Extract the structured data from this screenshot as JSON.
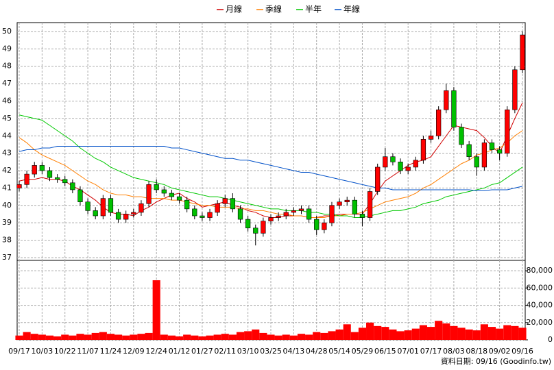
{
  "chart_data": {
    "type": "candlestick",
    "legend": [
      {
        "name": "月線",
        "color": "#d00000"
      },
      {
        "name": "季線",
        "color": "#ff7f00"
      },
      {
        "name": "半年",
        "color": "#00c800"
      },
      {
        "name": "年線",
        "color": "#0050c8"
      }
    ],
    "up_color": "#ff0000",
    "down_color": "#00c000",
    "categories": [
      "09/17",
      null,
      null,
      "10/03",
      null,
      null,
      "10/22",
      null,
      null,
      "11/07",
      null,
      null,
      "11/24",
      null,
      null,
      "12/09",
      null,
      null,
      "12/24",
      null,
      null,
      "01/12",
      null,
      null,
      "01/27",
      null,
      null,
      "02/11",
      null,
      null,
      "03/10",
      null,
      null,
      "03/25",
      null,
      null,
      "04/13",
      null,
      null,
      "04/28",
      null,
      null,
      "05/14",
      null,
      null,
      "05/29",
      null,
      null,
      "06/15",
      null,
      null,
      "07/01",
      null,
      null,
      "07/17",
      null,
      null,
      "08/03",
      null,
      null,
      "08/18",
      null,
      null,
      "09/02",
      null,
      null,
      "09/16"
    ],
    "open": [
      41.0,
      41.2,
      41.8,
      42.3,
      42.0,
      41.6,
      41.5,
      41.3,
      40.9,
      40.2,
      39.7,
      39.4,
      40.4,
      39.6,
      39.2,
      39.5,
      39.6,
      40.1,
      41.2,
      40.9,
      40.7,
      40.5,
      40.3,
      39.8,
      39.4,
      39.3,
      39.6,
      40.1,
      40.4,
      39.8,
      39.2,
      38.7,
      38.4,
      39.1,
      39.3,
      39.4,
      39.6,
      39.7,
      39.8,
      39.2,
      38.6,
      39.0,
      40.0,
      40.2,
      40.3,
      39.5,
      39.3,
      40.8,
      42.2,
      42.8,
      42.5,
      42.0,
      42.2,
      42.6,
      43.8,
      44.0,
      45.5,
      46.6,
      44.5,
      43.5,
      42.8,
      42.2,
      43.6,
      43.2,
      43.0,
      45.5,
      47.8
    ],
    "high": [
      41.4,
      42.0,
      42.5,
      42.5,
      42.2,
      41.8,
      41.7,
      41.5,
      41.1,
      40.4,
      39.9,
      40.6,
      40.6,
      39.8,
      39.7,
      39.8,
      40.3,
      41.4,
      41.5,
      41.1,
      40.9,
      40.7,
      40.5,
      40.0,
      39.6,
      39.8,
      40.3,
      40.6,
      40.7,
      40.0,
      39.4,
      38.9,
      39.3,
      39.5,
      39.6,
      39.8,
      39.9,
      40.0,
      40.0,
      39.4,
      39.2,
      40.2,
      40.4,
      40.5,
      40.5,
      39.7,
      41.0,
      42.4,
      43.3,
      43.0,
      42.7,
      42.4,
      42.8,
      44.0,
      44.3,
      45.7,
      47.0,
      46.8,
      44.7,
      43.7,
      43.0,
      43.8,
      43.8,
      43.4,
      45.7,
      48.0,
      50.0
    ],
    "low": [
      40.8,
      41.0,
      41.6,
      41.8,
      41.4,
      41.3,
      41.1,
      40.7,
      40.0,
      39.5,
      39.2,
      39.2,
      39.4,
      39.0,
      39.0,
      39.3,
      39.4,
      39.9,
      40.7,
      40.5,
      40.3,
      40.1,
      39.6,
      39.2,
      39.1,
      39.1,
      39.4,
      39.9,
      39.6,
      39.0,
      38.5,
      37.7,
      38.2,
      38.9,
      39.1,
      39.2,
      39.4,
      39.5,
      39.0,
      38.3,
      38.4,
      38.8,
      39.8,
      40.0,
      39.3,
      38.8,
      39.1,
      40.6,
      42.0,
      42.3,
      41.8,
      41.8,
      42.0,
      42.4,
      43.6,
      43.8,
      45.3,
      44.3,
      43.3,
      42.6,
      41.7,
      42.0,
      43.0,
      42.6,
      42.8,
      45.3,
      47.6
    ],
    "close": [
      41.2,
      41.8,
      42.3,
      42.0,
      41.6,
      41.5,
      41.3,
      40.9,
      40.2,
      39.7,
      39.4,
      40.4,
      39.6,
      39.2,
      39.5,
      39.6,
      40.1,
      41.2,
      40.9,
      40.7,
      40.5,
      40.3,
      39.8,
      39.4,
      39.3,
      39.6,
      40.1,
      40.4,
      39.8,
      39.2,
      38.7,
      38.4,
      39.1,
      39.3,
      39.4,
      39.6,
      39.7,
      39.8,
      39.2,
      38.6,
      39.0,
      40.0,
      40.2,
      40.3,
      39.5,
      39.3,
      40.8,
      42.2,
      42.8,
      42.5,
      42.0,
      42.2,
      42.6,
      43.8,
      44.0,
      45.5,
      46.6,
      44.5,
      43.5,
      42.8,
      42.2,
      43.6,
      43.2,
      43.0,
      45.5,
      47.8,
      49.8
    ],
    "series": [
      {
        "values": [
          41.4,
          41.5,
          41.5,
          41.6,
          41.5,
          41.5,
          41.4,
          41.1,
          40.9,
          40.6,
          40.3,
          39.9,
          39.6,
          39.5,
          39.5,
          39.4,
          39.7,
          39.9,
          40.2,
          40.4,
          40.6,
          40.7,
          40.4,
          40.2,
          39.9,
          40.0,
          40.1,
          40.2,
          40.0,
          39.9,
          39.7,
          39.6,
          39.4,
          39.3,
          39.3,
          39.4,
          39.4,
          39.4,
          39.3,
          39.3,
          39.4,
          39.4,
          39.5,
          39.5,
          39.5,
          39.5,
          40.1,
          40.8,
          41.4,
          41.7,
          42.0,
          42.3,
          42.5,
          42.6,
          42.8,
          43.4,
          44.0,
          44.6,
          44.5,
          44.4,
          44.3,
          43.9,
          43.4,
          43.0,
          44.0,
          45.0,
          45.9
        ]
      },
      {
        "values": [
          43.9,
          43.6,
          43.2,
          42.9,
          42.7,
          42.5,
          42.3,
          42.0,
          41.7,
          41.4,
          41.2,
          40.9,
          40.7,
          40.6,
          40.6,
          40.5,
          40.5,
          40.4,
          40.4,
          40.4,
          40.3,
          40.3,
          40.2,
          40.1,
          40.0,
          40.0,
          39.9,
          39.9,
          39.9,
          39.8,
          39.8,
          39.7,
          39.7,
          39.6,
          39.5,
          39.5,
          39.4,
          39.4,
          39.3,
          39.3,
          39.3,
          39.4,
          39.4,
          39.5,
          39.5,
          39.6,
          39.8,
          40.0,
          40.2,
          40.3,
          40.4,
          40.5,
          40.7,
          41.0,
          41.2,
          41.5,
          41.8,
          42.1,
          42.4,
          42.6,
          42.9,
          43.0,
          43.2,
          43.3,
          43.6,
          44.0,
          44.3
        ]
      },
      {
        "values": [
          45.2,
          45.1,
          45.0,
          44.9,
          44.6,
          44.3,
          44.0,
          43.7,
          43.3,
          43.0,
          42.7,
          42.5,
          42.2,
          42.0,
          41.8,
          41.6,
          41.5,
          41.4,
          41.3,
          41.2,
          41.0,
          40.9,
          40.8,
          40.7,
          40.6,
          40.5,
          40.5,
          40.4,
          40.3,
          40.2,
          40.1,
          40.0,
          39.9,
          39.8,
          39.8,
          39.7,
          39.7,
          39.7,
          39.6,
          39.6,
          39.5,
          39.5,
          39.4,
          39.4,
          39.3,
          39.3,
          39.4,
          39.5,
          39.6,
          39.7,
          39.7,
          39.8,
          39.9,
          40.1,
          40.2,
          40.3,
          40.5,
          40.6,
          40.7,
          40.8,
          40.9,
          41.0,
          41.2,
          41.3,
          41.6,
          41.9,
          42.2
        ]
      },
      {
        "values": [
          43.1,
          43.2,
          43.2,
          43.3,
          43.3,
          43.4,
          43.4,
          43.4,
          43.4,
          43.4,
          43.4,
          43.4,
          43.4,
          43.4,
          43.4,
          43.4,
          43.4,
          43.4,
          43.4,
          43.4,
          43.3,
          43.3,
          43.2,
          43.1,
          43.0,
          42.9,
          42.8,
          42.7,
          42.7,
          42.6,
          42.6,
          42.5,
          42.4,
          42.3,
          42.2,
          42.1,
          42.0,
          41.9,
          41.9,
          41.8,
          41.7,
          41.6,
          41.5,
          41.4,
          41.3,
          41.2,
          41.1,
          41.0,
          41.0,
          40.9,
          40.9,
          40.9,
          40.9,
          40.9,
          40.9,
          40.9,
          40.9,
          40.9,
          40.9,
          40.9,
          40.85,
          40.85,
          40.9,
          40.9,
          40.9,
          41.0,
          41.1
        ]
      }
    ],
    "ylim": [
      36.84,
      50.51
    ],
    "yticks": [
      37,
      38,
      39,
      40,
      41,
      42,
      43,
      44,
      45,
      46,
      47,
      48,
      49,
      50
    ],
    "volume": {
      "color": "#ff0000",
      "values": [
        5000,
        9000,
        7000,
        6000,
        5000,
        4000,
        6000,
        5000,
        7000,
        6000,
        8000,
        9000,
        7000,
        6000,
        5000,
        6000,
        7000,
        8000,
        69000,
        6000,
        5000,
        4000,
        6000,
        5000,
        4000,
        5000,
        6000,
        7000,
        6000,
        9000,
        10000,
        12000,
        8000,
        6000,
        5000,
        6000,
        5000,
        7000,
        6000,
        9000,
        8000,
        10000,
        12000,
        18000,
        9000,
        14000,
        20000,
        16000,
        15000,
        12000,
        10000,
        11000,
        13000,
        17000,
        15000,
        22000,
        19000,
        16000,
        14000,
        12000,
        11000,
        18000,
        15000,
        13000,
        17000,
        16000,
        14000
      ],
      "ylim": [
        0,
        92000
      ],
      "yticks": [
        0,
        {
          "value": 20000,
          "label": "20,000"
        },
        {
          "value": 40000,
          "label": "40,000"
        },
        {
          "value": 60000,
          "label": "60,000"
        },
        {
          "value": 80000,
          "label": "80,000"
        }
      ]
    },
    "grid": true,
    "footer": "資料日期: 09/16  (Goodinfo.tw)"
  }
}
